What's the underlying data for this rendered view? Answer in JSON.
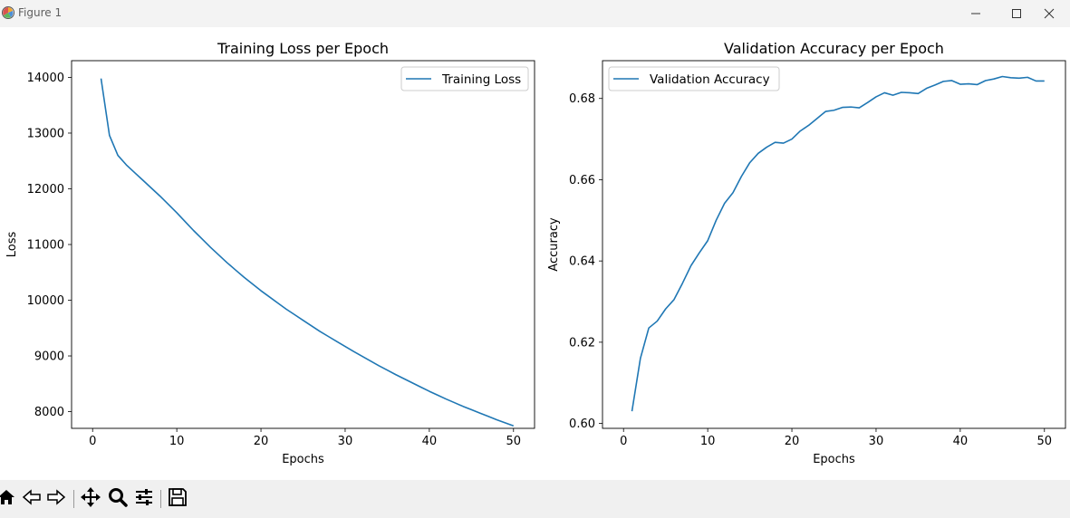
{
  "window": {
    "title": "Figure 1",
    "icons": [
      "matplotlib-icon",
      "minimize-icon",
      "maximize-icon",
      "close-icon"
    ]
  },
  "toolbar": {
    "buttons": [
      "home-icon",
      "back-icon",
      "forward-icon",
      "pan-icon",
      "zoom-icon",
      "configure-subplots-icon",
      "save-icon"
    ]
  },
  "colors": {
    "line": "#1f77b4",
    "titlebar": "#f3f3f3",
    "toolbar": "#f0f0f0"
  },
  "chart_data": [
    {
      "type": "line",
      "title": "Training Loss per Epoch",
      "xlabel": "Epochs",
      "ylabel": "Loss",
      "xlim": [
        -2.5,
        52.5
      ],
      "ylim": [
        7700,
        14300
      ],
      "xticks": [
        0,
        10,
        20,
        30,
        40,
        50
      ],
      "yticks": [
        8000,
        9000,
        10000,
        11000,
        12000,
        13000,
        14000
      ],
      "ytick_labels": [
        "8000",
        "9000",
        "10000",
        "11000",
        "12000",
        "13000",
        "14000"
      ],
      "legend": "upper right",
      "series": [
        {
          "name": "Training Loss",
          "x": [
            1,
            2,
            3,
            4,
            5,
            6,
            7,
            8,
            9,
            10,
            11,
            12,
            13,
            14,
            15,
            16,
            17,
            18,
            19,
            20,
            21,
            22,
            23,
            24,
            25,
            26,
            27,
            28,
            29,
            30,
            31,
            32,
            33,
            34,
            35,
            36,
            37,
            38,
            39,
            40,
            41,
            42,
            43,
            44,
            45,
            46,
            47,
            48,
            49,
            50
          ],
          "y": [
            13980,
            12960,
            12600,
            12430,
            12290,
            12150,
            12010,
            11870,
            11720,
            11570,
            11410,
            11250,
            11100,
            10950,
            10810,
            10670,
            10540,
            10410,
            10290,
            10170,
            10060,
            9950,
            9840,
            9740,
            9640,
            9540,
            9440,
            9350,
            9260,
            9170,
            9080,
            8995,
            8910,
            8825,
            8745,
            8665,
            8590,
            8515,
            8440,
            8365,
            8295,
            8225,
            8160,
            8095,
            8035,
            7975,
            7915,
            7855,
            7800,
            7745
          ]
        }
      ]
    },
    {
      "type": "line",
      "title": "Validation Accuracy per Epoch",
      "xlabel": "Epochs",
      "ylabel": "Accuracy",
      "xlim": [
        -2.5,
        52.5
      ],
      "ylim": [
        0.5988,
        0.6893
      ],
      "xticks": [
        0,
        10,
        20,
        30,
        40,
        50
      ],
      "yticks": [
        0.6,
        0.62,
        0.64,
        0.66,
        0.68
      ],
      "ytick_labels": [
        "0.60",
        "0.62",
        "0.64",
        "0.66",
        "0.68"
      ],
      "legend": "upper left",
      "series": [
        {
          "name": "Validation Accuracy",
          "x": [
            1,
            2,
            3,
            4,
            5,
            6,
            7,
            8,
            9,
            10,
            11,
            12,
            13,
            14,
            15,
            16,
            17,
            18,
            19,
            20,
            21,
            22,
            23,
            24,
            25,
            26,
            27,
            28,
            29,
            30,
            31,
            32,
            33,
            34,
            35,
            36,
            37,
            38,
            39,
            40,
            41,
            42,
            43,
            44,
            45,
            46,
            47,
            48,
            49,
            50
          ],
          "y": [
            0.603,
            0.616,
            0.6235,
            0.6252,
            0.6282,
            0.6305,
            0.6345,
            0.6388,
            0.642,
            0.645,
            0.65,
            0.6542,
            0.6568,
            0.6608,
            0.6642,
            0.6665,
            0.668,
            0.6692,
            0.669,
            0.67,
            0.672,
            0.6734,
            0.6751,
            0.6768,
            0.6771,
            0.6778,
            0.6779,
            0.6777,
            0.679,
            0.6804,
            0.6814,
            0.6808,
            0.6815,
            0.6814,
            0.6812,
            0.6825,
            0.6833,
            0.6842,
            0.6844,
            0.6835,
            0.6836,
            0.6834,
            0.6844,
            0.6848,
            0.6854,
            0.6851,
            0.685,
            0.6852,
            0.6843,
            0.6843
          ]
        }
      ]
    }
  ]
}
